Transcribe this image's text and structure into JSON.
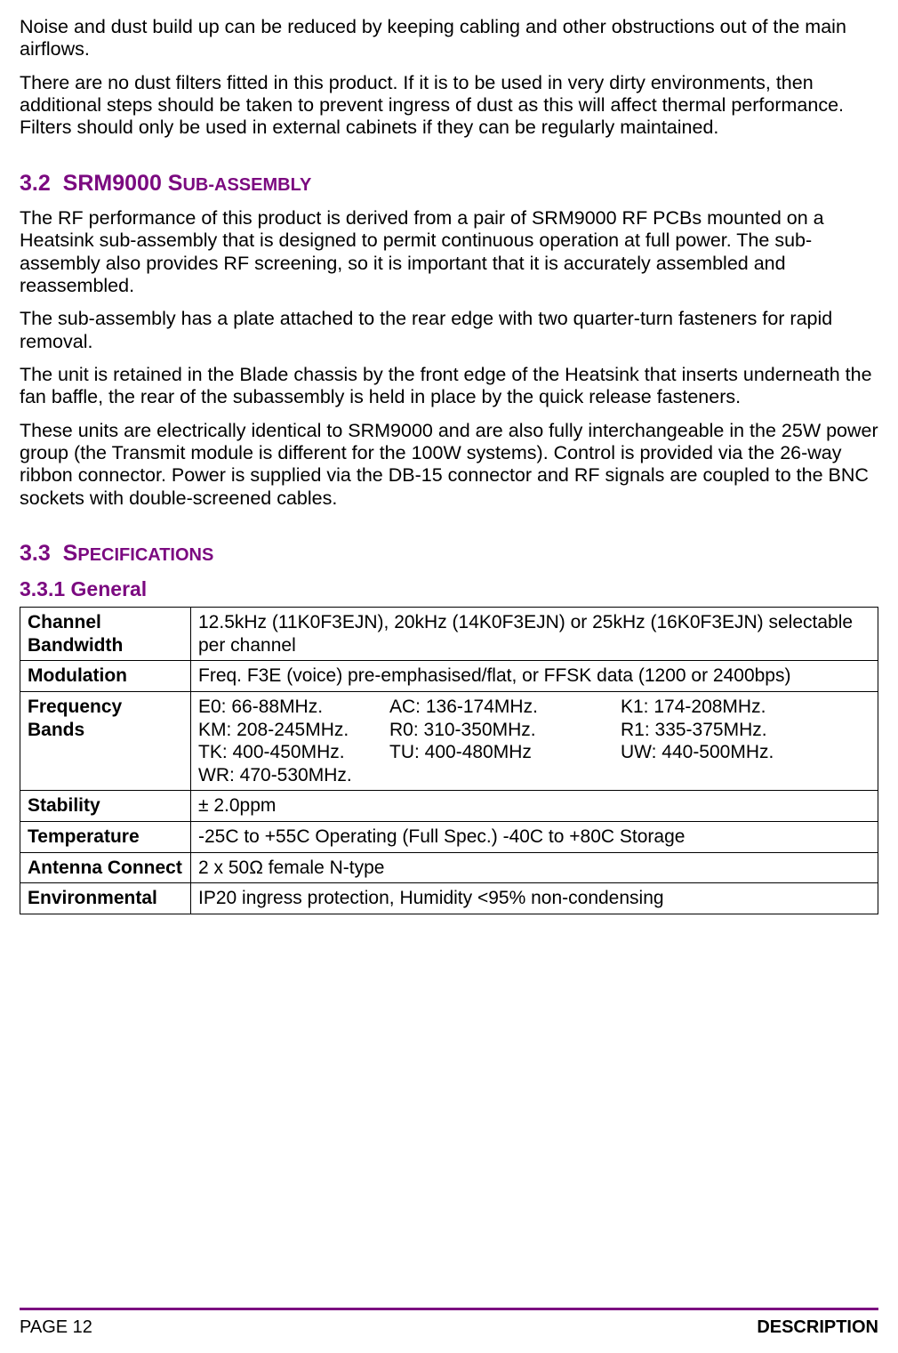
{
  "intro": {
    "p1": "Noise and dust build up can be reduced by keeping cabling and other obstructions out of the main airflows.",
    "p2": "There are no dust filters fitted in this product. If it is to be used in very dirty environments, then additional steps should be taken to prevent ingress of dust as this will affect thermal performance. Filters should only be used in external cabinets if they can be regularly maintained."
  },
  "section32": {
    "number": "3.2",
    "title": "SRM9000 S",
    "title_sc": "UB-ASSEMBLY",
    "p1": "The RF performance of this product is derived from a pair of SRM9000 RF PCBs mounted on a Heatsink sub-assembly that is designed to permit continuous operation at full power. The sub-assembly also provides RF screening, so it is important that it is accurately assembled and reassembled.",
    "p2": "The sub-assembly has a plate attached to the rear edge with two quarter-turn fasteners for rapid removal.",
    "p3": "The unit is retained in the Blade chassis by the front edge of the Heatsink that inserts underneath the fan baffle, the rear of the subassembly is held in place by the quick release fasteners.",
    "p4": "These units are electrically identical to SRM9000 and are also fully interchangeable in the 25W power group (the Transmit module is different for the 100W systems). Control is provided via the 26-way ribbon connector. Power is supplied via the DB-15 connector and RF signals are coupled to the BNC sockets with double-screened cables."
  },
  "section33": {
    "number": "3.3",
    "title": "S",
    "title_sc": "PECIFICATIONS",
    "sub_number": "3.3.1",
    "sub_title": "General"
  },
  "table": {
    "channel_bw_label": "Channel Bandwidth",
    "channel_bw_value": "12.5kHz (11K0F3EJN), 20kHz (14K0F3EJN) or 25kHz (16K0F3EJN) selectable per channel",
    "modulation_label": "Modulation",
    "modulation_value": "Freq. F3E (voice) pre-emphasised/flat, or FFSK data (1200 or 2400bps)",
    "freq_bands_label": "Frequency Bands",
    "bands": {
      "c1r1": "E0: 66-88MHz.",
      "c2r1": "AC: 136-174MHz.",
      "c3r1": "K1: 174-208MHz.",
      "c1r2": "KM: 208-245MHz.",
      "c2r2": "R0: 310-350MHz.",
      "c3r2": "R1: 335-375MHz.",
      "c1r3": "TK: 400-450MHz.",
      "c2r3": "TU: 400-480MHz",
      "c3r3": "UW: 440-500MHz.",
      "c1r4": "WR: 470-530MHz."
    },
    "stability_label": "Stability",
    "stability_value": "± 2.0ppm",
    "temperature_label": "Temperature",
    "temperature_value": "-25C to +55C Operating (Full Spec.) -40C to +80C Storage",
    "antenna_label": "Antenna Connect",
    "antenna_value": "2 x 50Ω female N-type",
    "env_label": "Environmental",
    "env_value": "IP20 ingress protection, Humidity <95% non-condensing"
  },
  "footer": {
    "left": "PAGE 12",
    "right": "DESCRIPTION"
  },
  "colors": {
    "heading": "#7b0a80",
    "text": "#000000",
    "border": "#000000",
    "background": "#ffffff"
  }
}
